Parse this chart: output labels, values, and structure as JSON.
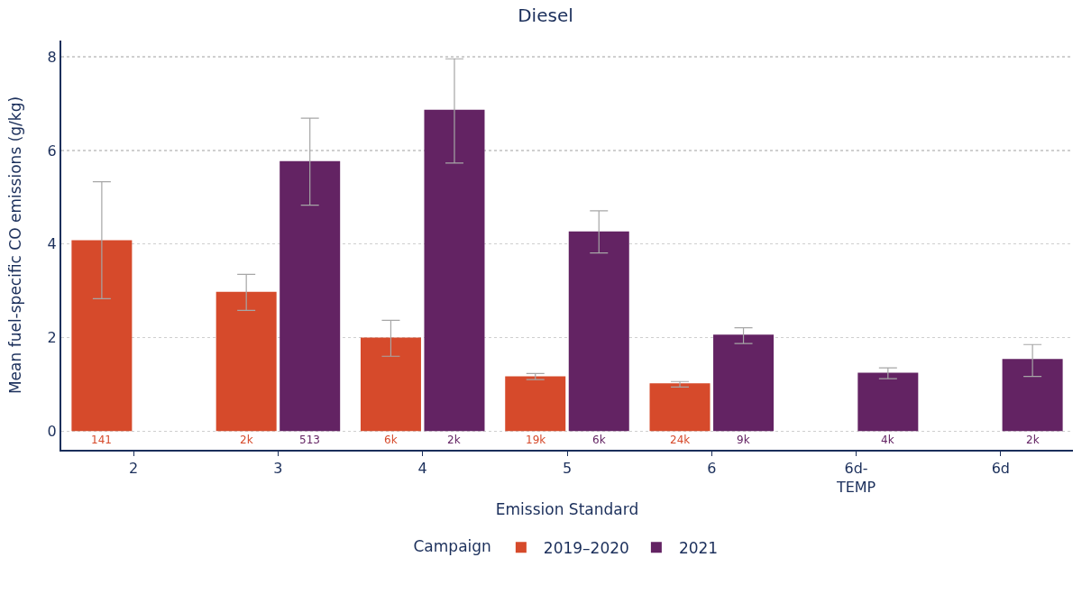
{
  "chart_data": {
    "type": "bar",
    "title": "Diesel",
    "xlabel": "Emission Standard",
    "ylabel": "Mean fuel-specific CO emissions (g/kg)",
    "legend_title": "Campaign",
    "legend": "bottom",
    "grid": "y",
    "categories": [
      "2",
      "3",
      "4",
      "5",
      "6",
      "6d-\nTEMP",
      "6d"
    ],
    "ylim": [
      -0.4,
      8.35
    ],
    "yticks": [
      0,
      2,
      4,
      6,
      8
    ],
    "series": [
      {
        "name": "2019–2020",
        "color": "#d64a2b",
        "values": [
          4.08,
          2.98,
          2.0,
          1.17,
          1.02,
          null,
          null
        ],
        "errors": [
          [
            2.83,
            5.33
          ],
          [
            2.58,
            3.35
          ],
          [
            1.6,
            2.37
          ],
          [
            1.1,
            1.23
          ],
          [
            0.94,
            1.06
          ],
          null,
          null
        ]
      },
      {
        "name": "2021",
        "color": "#632363",
        "values": [
          null,
          5.77,
          6.87,
          4.27,
          2.06,
          1.25,
          1.54
        ],
        "errors": [
          null,
          [
            4.83,
            6.69
          ],
          [
            5.73,
            7.96
          ],
          [
            3.81,
            4.71
          ],
          [
            1.87,
            2.21
          ],
          [
            1.12,
            1.35
          ],
          [
            1.17,
            1.85
          ]
        ]
      }
    ],
    "annotations": [
      {
        "text": "141",
        "x": "2",
        "y": 0
      },
      {
        "text": "2k",
        "x": "3",
        "y": 0
      },
      {
        "text": "513",
        "x": "3",
        "y": 0
      },
      {
        "text": "6k",
        "x": "4",
        "y": 0
      },
      {
        "text": "2k",
        "x": "4",
        "y": 0
      },
      {
        "text": "19k",
        "x": "5",
        "y": 0
      },
      {
        "text": "6k",
        "x": "5",
        "y": 0
      },
      {
        "text": "24k",
        "x": "6",
        "y": 0
      },
      {
        "text": "9k",
        "x": "6",
        "y": 0
      },
      {
        "text": "4k",
        "x": "6d-\nTEMP",
        "y": 0
      },
      {
        "text": "2k",
        "x": "6d",
        "y": 0
      }
    ]
  }
}
